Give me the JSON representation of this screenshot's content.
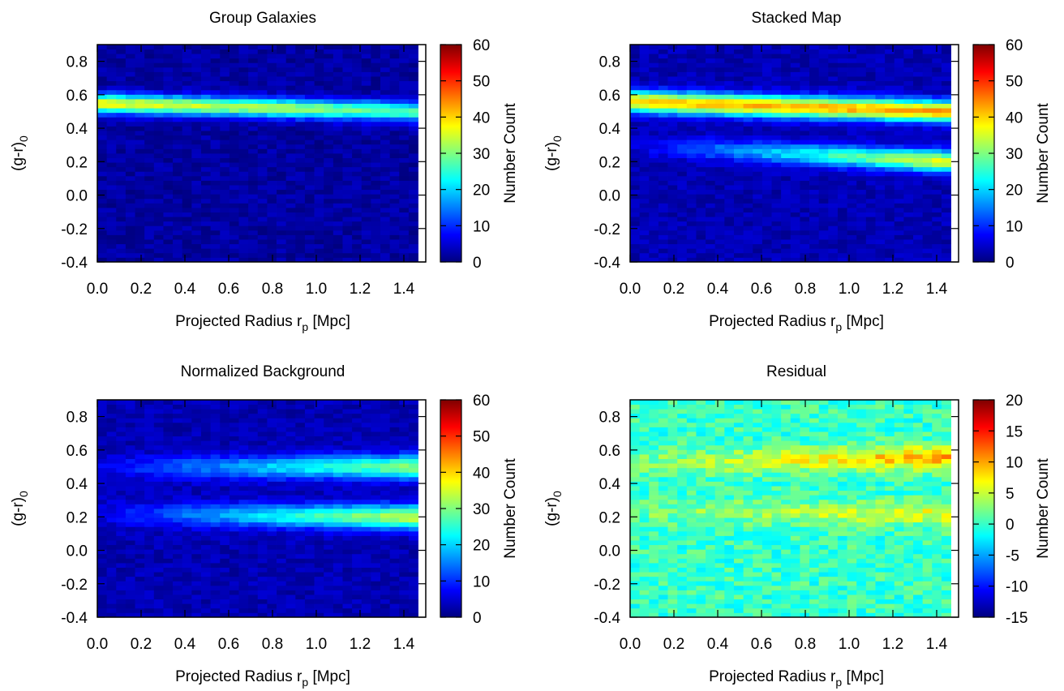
{
  "figure": {
    "colormap": [
      "#00007f",
      "#0000ff",
      "#007fff",
      "#00ffff",
      "#7fff7f",
      "#ffff00",
      "#ff7f00",
      "#ff0000",
      "#7f0000"
    ]
  },
  "chart_data": [
    {
      "type": "heatmap",
      "title": "Group Galaxies",
      "xlabel": "Projected Radius r_p [Mpc]",
      "ylabel": "(g-r)_0",
      "colorbar_label": "Number Count",
      "xlim": [
        0.0,
        1.5
      ],
      "ylim": [
        -0.4,
        0.9
      ],
      "xticks": [
        "0.0",
        "0.2",
        "0.4",
        "0.6",
        "0.8",
        "1.0",
        "1.2",
        "1.4"
      ],
      "yticks": [
        "-0.4",
        "-0.2",
        "0.0",
        "0.2",
        "0.4",
        "0.6",
        "0.8"
      ],
      "clim": [
        0,
        60
      ],
      "cticks": [
        "0",
        "10",
        "20",
        "30",
        "40",
        "50",
        "60"
      ],
      "bands": [
        {
          "description": "red sequence",
          "y_center_start": 0.55,
          "y_center_end": 0.5,
          "y_width": 0.04,
          "peak_start": 35,
          "peak_end": 25
        }
      ],
      "background_level": 2
    },
    {
      "type": "heatmap",
      "title": "Stacked Map",
      "xlabel": "Projected Radius r_p [Mpc]",
      "ylabel": "(g-r)_0",
      "colorbar_label": "Number Count",
      "xlim": [
        0.0,
        1.5
      ],
      "ylim": [
        -0.4,
        0.9
      ],
      "xticks": [
        "0.0",
        "0.2",
        "0.4",
        "0.6",
        "0.8",
        "1.0",
        "1.2",
        "1.4"
      ],
      "yticks": [
        "-0.4",
        "-0.2",
        "0.0",
        "0.2",
        "0.4",
        "0.6",
        "0.8"
      ],
      "clim": [
        0,
        60
      ],
      "cticks": [
        "0",
        "10",
        "20",
        "30",
        "40",
        "50",
        "60"
      ],
      "bands": [
        {
          "description": "red sequence",
          "y_center_start": 0.56,
          "y_center_end": 0.5,
          "y_width": 0.045,
          "peak_start": 38,
          "peak_end": 40
        },
        {
          "description": "blue cloud",
          "y_center_start": 0.3,
          "y_center_end": 0.2,
          "y_width": 0.045,
          "peak_start": 2,
          "peak_end": 34
        }
      ],
      "background_level": 3
    },
    {
      "type": "heatmap",
      "title": "Normalized Background",
      "xlabel": "Projected Radius r_p [Mpc]",
      "ylabel": "(g-r)_0",
      "colorbar_label": "Number Count",
      "xlim": [
        0.0,
        1.5
      ],
      "ylim": [
        -0.4,
        0.9
      ],
      "xticks": [
        "0.0",
        "0.2",
        "0.4",
        "0.6",
        "0.8",
        "1.0",
        "1.2",
        "1.4"
      ],
      "yticks": [
        "-0.4",
        "-0.2",
        "0.0",
        "0.2",
        "0.4",
        "0.6",
        "0.8"
      ],
      "clim": [
        0,
        60
      ],
      "cticks": [
        "0",
        "10",
        "20",
        "30",
        "40",
        "50",
        "60"
      ],
      "bands": [
        {
          "description": "red sequence",
          "y_center_start": 0.5,
          "y_center_end": 0.5,
          "y_width": 0.05,
          "peak_start": 3,
          "peak_end": 28
        },
        {
          "description": "blue cloud",
          "y_center_start": 0.22,
          "y_center_end": 0.2,
          "y_width": 0.05,
          "peak_start": 3,
          "peak_end": 32
        }
      ],
      "background_level": 3
    },
    {
      "type": "heatmap",
      "title": "Residual",
      "xlabel": "Projected Radius r_p [Mpc]",
      "ylabel": "(g-r)_0",
      "colorbar_label": "Number Count",
      "xlim": [
        0.0,
        1.5
      ],
      "ylim": [
        -0.4,
        0.9
      ],
      "xticks": [
        "0.0",
        "0.2",
        "0.4",
        "0.6",
        "0.8",
        "1.0",
        "1.2",
        "1.4"
      ],
      "yticks": [
        "-0.4",
        "-0.2",
        "0.0",
        "0.2",
        "0.4",
        "0.6",
        "0.8"
      ],
      "clim": [
        -15,
        20
      ],
      "cticks": [
        "-15",
        "-10",
        "-5",
        "0",
        "5",
        "10",
        "15",
        "20"
      ],
      "bands": [
        {
          "description": "red sequence residual",
          "y_center_start": 0.52,
          "y_center_end": 0.56,
          "y_width": 0.05,
          "peak_start": 2,
          "peak_end": 10
        },
        {
          "description": "blue cloud residual",
          "y_center_start": 0.24,
          "y_center_end": 0.22,
          "y_width": 0.05,
          "peak_start": 2,
          "peak_end": 6
        }
      ],
      "background_level": 0
    }
  ]
}
